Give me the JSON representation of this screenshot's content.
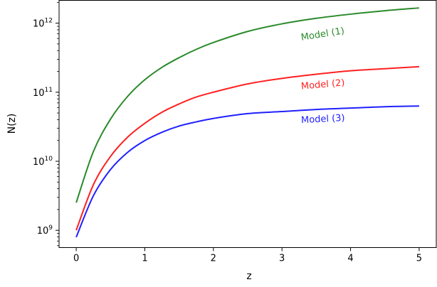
{
  "chart_data": {
    "type": "line",
    "xlabel": "z",
    "ylabel": "N(z)",
    "x_scale": "linear",
    "y_scale": "log",
    "xlim": [
      -0.25,
      5.25
    ],
    "ylim_log10": [
      8.75,
      12.33
    ],
    "x_ticks": [
      0,
      1,
      2,
      3,
      4,
      5
    ],
    "y_ticks": [
      {
        "exp": 9,
        "base": "10",
        "sup": "9"
      },
      {
        "exp": 10,
        "base": "10",
        "sup": "10"
      },
      {
        "exp": 11,
        "base": "10",
        "sup": "11"
      },
      {
        "exp": 12,
        "base": "10",
        "sup": "12"
      }
    ],
    "grid": false,
    "legend": "none (inline labels)",
    "x": [
      0,
      0.25,
      0.5,
      0.75,
      1,
      1.25,
      1.5,
      1.75,
      2,
      2.5,
      3,
      3.5,
      4,
      4.5,
      5
    ],
    "series": [
      {
        "name": "Model (1)",
        "color": "#2a8a2a",
        "label_at": {
          "x": 3.6,
          "y_log10": 11.8
        },
        "label_angle": -9,
        "y_log10": [
          9.4,
          10.14,
          10.61,
          10.94,
          11.18,
          11.36,
          11.5,
          11.62,
          11.72,
          11.88,
          11.99,
          12.07,
          12.13,
          12.18,
          12.22
        ]
      },
      {
        "name": "Model (2)",
        "color": "#ff2020",
        "label_at": {
          "x": 3.6,
          "y_log10": 11.07
        },
        "label_angle": -5,
        "y_log10": [
          9.0,
          9.66,
          10.07,
          10.35,
          10.55,
          10.71,
          10.83,
          10.93,
          11.0,
          11.12,
          11.2,
          11.26,
          11.31,
          11.34,
          11.37
        ]
      },
      {
        "name": "Model (3)",
        "color": "#2020ff",
        "label_at": {
          "x": 3.6,
          "y_log10": 10.57
        },
        "label_angle": -3,
        "y_log10": [
          8.9,
          9.5,
          9.88,
          10.13,
          10.3,
          10.42,
          10.51,
          10.57,
          10.62,
          10.69,
          10.72,
          10.75,
          10.77,
          10.79,
          10.8
        ]
      }
    ]
  }
}
